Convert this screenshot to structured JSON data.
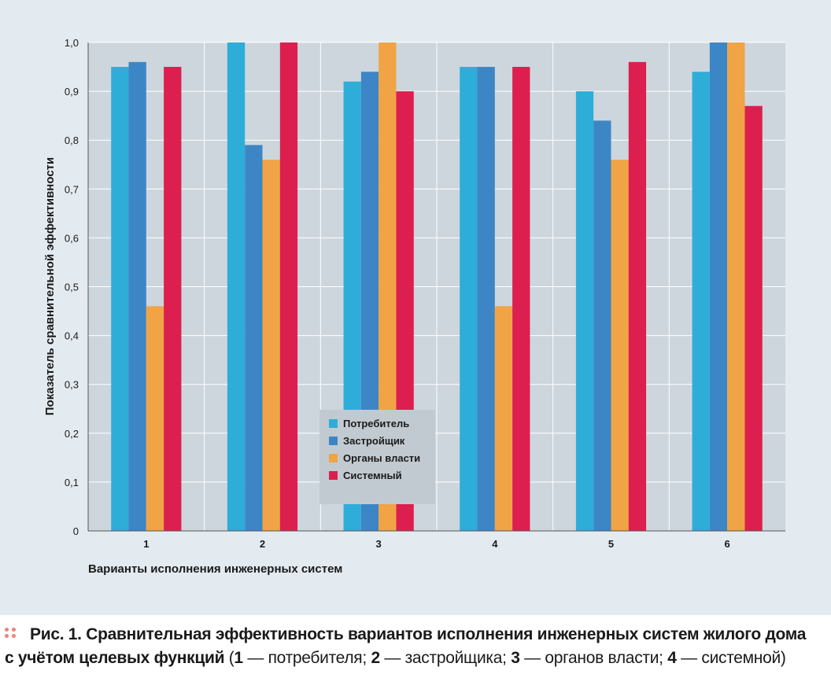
{
  "chart_data": {
    "type": "bar",
    "categories": [
      "1",
      "2",
      "3",
      "4",
      "5",
      "6"
    ],
    "series": [
      {
        "name": "Потребитель",
        "color": "#2eadd9",
        "values": [
          0.95,
          1.0,
          0.92,
          0.95,
          0.9,
          0.94
        ]
      },
      {
        "name": "Застройщик",
        "color": "#3d86c6",
        "values": [
          0.96,
          0.79,
          0.94,
          0.95,
          0.84,
          1.0
        ]
      },
      {
        "name": "Органы власти",
        "color": "#f0a445",
        "values": [
          0.46,
          0.76,
          1.0,
          0.46,
          0.76,
          1.0
        ]
      },
      {
        "name": "Системный",
        "color": "#dc1f4e",
        "values": [
          0.95,
          1.0,
          0.9,
          0.95,
          0.96,
          0.87
        ]
      }
    ],
    "xlabel": "Варианты исполнения инженерных систем",
    "ylabel": "Показатель сравнительной эффективности",
    "ylim": [
      0,
      1.0
    ],
    "yticks": [
      "0",
      "0,1",
      "0,2",
      "0,3",
      "0,4",
      "0,5",
      "0,6",
      "0,7",
      "0,8",
      "0,9",
      "1,0"
    ],
    "grid": true,
    "legend_position": "center"
  },
  "caption": {
    "prefix": "Рис. 1.",
    "title_line1": " Сравнительная эффективность вариантов исполнения инженерных систем жилого дома",
    "title_line2": "с учётом целевых функций",
    "open_paren": " (",
    "n1": "1",
    "t1": " — потребителя; ",
    "n2": "2",
    "t2": " — застройщика; ",
    "n3": "3",
    "t3": " — органов власти; ",
    "n4": "4",
    "t4": " — системной)"
  },
  "colors": {
    "plot_background": "#cdd6dd",
    "figure_background": "#e4ebf0",
    "legend_background": "#c2cad1",
    "caption_dots": "#f08080"
  }
}
